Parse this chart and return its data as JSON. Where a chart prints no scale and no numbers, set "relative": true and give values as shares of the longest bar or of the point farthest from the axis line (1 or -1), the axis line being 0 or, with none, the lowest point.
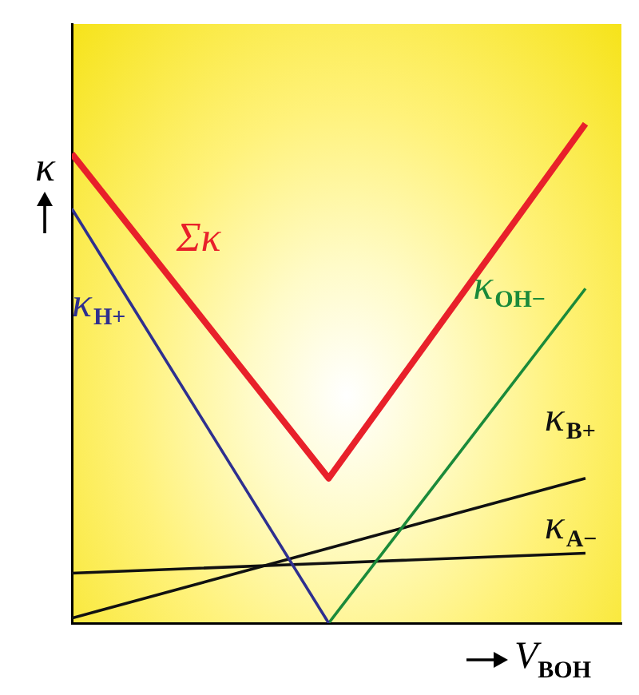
{
  "chart_data": {
    "type": "line",
    "relative": true,
    "xlabel": "V$_{BOH}$",
    "ylabel": "κ",
    "categories": [
      null,
      null,
      null
    ],
    "legend": false,
    "grid": false,
    "marker": "none",
    "series": [
      {
        "name": "Σκ",
        "color": "#e8202a",
        "values": [
          0.94,
          0.29,
          1
        ]
      },
      {
        "name": "κ$_{H+}$",
        "color": "#2e2f8f",
        "values": [
          0.83,
          0,
          null
        ]
      },
      {
        "name": "κ$_{OH−}$",
        "color": "#1a8a3a",
        "values": [
          null,
          0,
          0.67
        ]
      },
      {
        "name": "κ$_{B+}$",
        "color": "#111111",
        "values": [
          0.01,
          0.15,
          0.29
        ]
      },
      {
        "name": "κ$_{A−}$",
        "color": "#111111",
        "values": [
          0.1,
          0.12,
          0.14
        ]
      }
    ]
  }
}
